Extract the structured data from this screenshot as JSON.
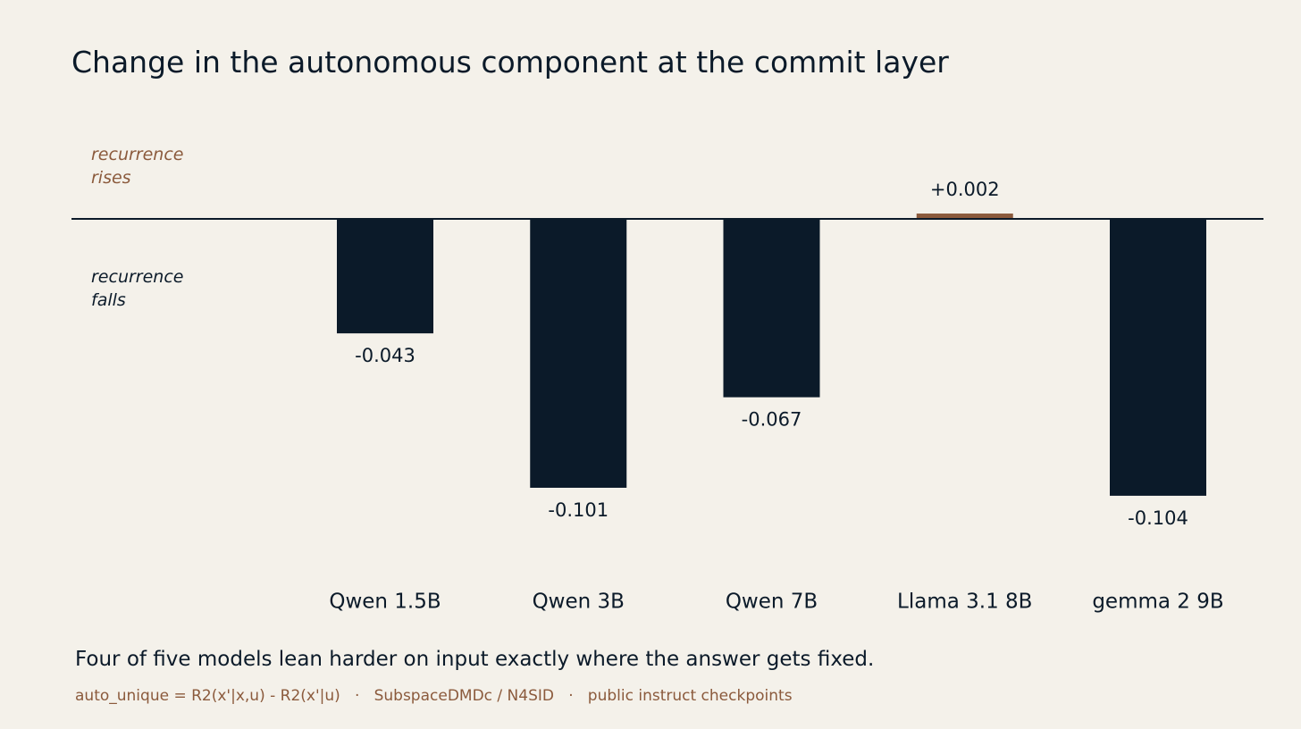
{
  "colors": {
    "background": "#f4f1ea",
    "negative": "#0b1a29",
    "positive": "#8b5a3c",
    "baseline": "#0b1a29",
    "text": "#0b1a29",
    "accent_text": "#8b5a3c"
  },
  "zone_labels": {
    "up": "recurrence rises",
    "down": "recurrence falls"
  },
  "caption": "Four of five models lean harder on input exactly where the answer gets fixed.",
  "footnote": "auto_unique = R2(x'|x,u) - R2(x'|u)   ·   SubspaceDMDc / N4SID   ·   public instruct checkpoints",
  "chart_data": {
    "type": "bar",
    "title": "Change in the autonomous component at the commit layer",
    "xlabel": "",
    "ylabel": "",
    "categories": [
      "Qwen 1.5B",
      "Qwen 3B",
      "Qwen 7B",
      "Llama 3.1 8B",
      "gemma 2 9B"
    ],
    "values": [
      -0.043,
      -0.101,
      -0.067,
      0.002,
      -0.104
    ],
    "value_labels": [
      "-0.043",
      "-0.101",
      "-0.067",
      "+0.002",
      "-0.104"
    ],
    "ylim": [
      -0.12,
      0.03
    ],
    "grid": false,
    "legend": "none",
    "baseline": 0
  }
}
